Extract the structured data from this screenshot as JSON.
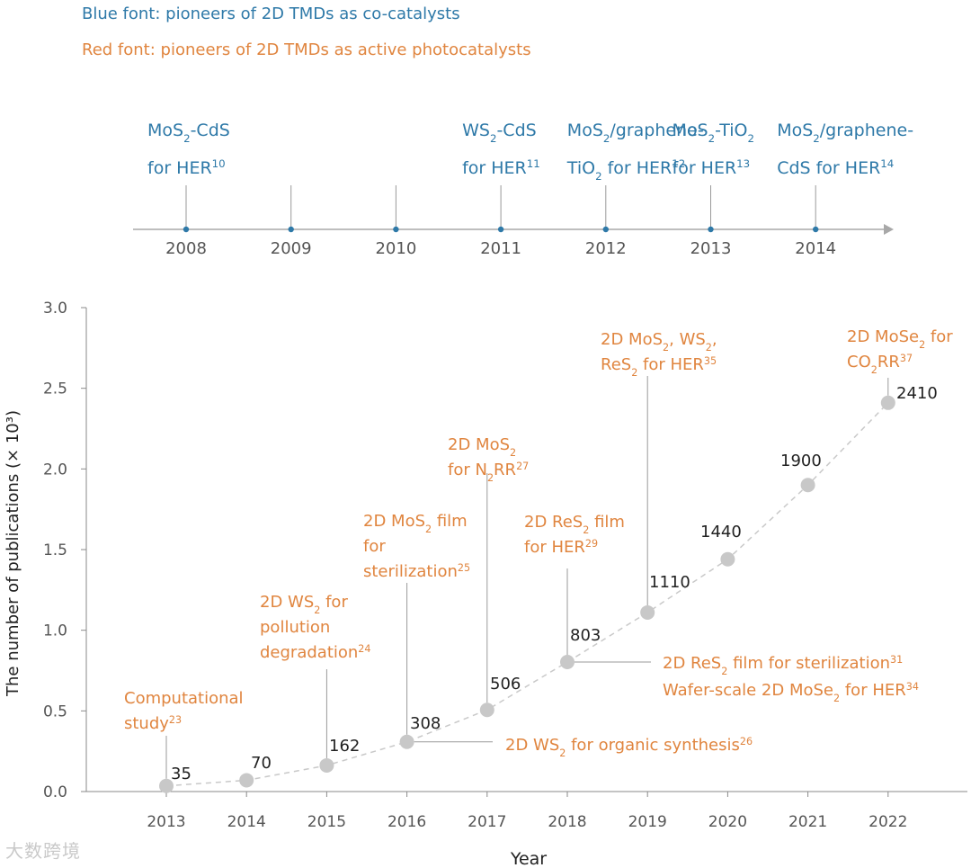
{
  "legend": {
    "blue_note": "Blue font: pioneers of 2D TMDs as co-catalysts",
    "red_note": "Red font: pioneers of 2D TMDs as active photocatalysts"
  },
  "colors": {
    "blue": "#2e79a8",
    "orange": "#e0853f",
    "marker": "#c8c8c8",
    "axis": "#8a8a8a"
  },
  "timeline": {
    "years": [
      "2008",
      "2009",
      "2010",
      "2011",
      "2012",
      "2013",
      "2014"
    ],
    "events": [
      {
        "year": "2008",
        "lines": [
          [
            {
              "t": "MoS"
            },
            {
              "t": "2",
              "s": "sub"
            },
            {
              "t": "-CdS"
            }
          ],
          [
            {
              "t": "for HER"
            },
            {
              "t": "10",
              "s": "sup"
            }
          ]
        ]
      },
      {
        "year": "2011",
        "lines": [
          [
            {
              "t": "WS"
            },
            {
              "t": "2",
              "s": "sub"
            },
            {
              "t": "-CdS"
            }
          ],
          [
            {
              "t": "for HER"
            },
            {
              "t": "11",
              "s": "sup"
            }
          ]
        ]
      },
      {
        "year": "2012",
        "lines": [
          [
            {
              "t": "MoS"
            },
            {
              "t": "2",
              "s": "sub"
            },
            {
              "t": "/graphene-"
            }
          ],
          [
            {
              "t": "TiO"
            },
            {
              "t": "2",
              "s": "sub"
            },
            {
              "t": " for HER"
            },
            {
              "t": "12",
              "s": "sup"
            }
          ]
        ]
      },
      {
        "year": "2013",
        "lines": [
          [
            {
              "t": "MoS"
            },
            {
              "t": "2",
              "s": "sub"
            },
            {
              "t": "-TiO"
            },
            {
              "t": "2",
              "s": "sub"
            }
          ],
          [
            {
              "t": "for HER"
            },
            {
              "t": "13",
              "s": "sup"
            }
          ]
        ]
      },
      {
        "year": "2014",
        "lines": [
          [
            {
              "t": "MoS"
            },
            {
              "t": "2",
              "s": "sub"
            },
            {
              "t": "/graphene-"
            }
          ],
          [
            {
              "t": "CdS for HER"
            },
            {
              "t": "14",
              "s": "sup"
            }
          ]
        ]
      }
    ]
  },
  "chart_data": {
    "type": "scatter",
    "title": "",
    "xlabel": "Year",
    "ylabel": "The number of publications (× 10³)",
    "x": [
      2013,
      2014,
      2015,
      2016,
      2017,
      2018,
      2019,
      2020,
      2021,
      2022
    ],
    "values": [
      35,
      70,
      162,
      308,
      506,
      803,
      1110,
      1440,
      1900,
      2410
    ],
    "y_scaled": [
      0.035,
      0.07,
      0.162,
      0.308,
      0.506,
      0.803,
      1.11,
      1.44,
      1.9,
      2.41
    ],
    "value_labels": [
      "35",
      "70",
      "162",
      "308",
      "506",
      "803",
      "1110",
      "1440",
      "1900",
      "2410"
    ],
    "x_tick_labels": [
      "2013",
      "2014",
      "2015",
      "2016",
      "2017",
      "2018",
      "2019",
      "2020",
      "2021",
      "2022"
    ],
    "y_tick_labels": [
      "0.0",
      "0.5",
      "1.0",
      "1.5",
      "2.0",
      "2.5",
      "3.0"
    ],
    "ylim": [
      0,
      3.0
    ],
    "xlim": [
      2012,
      2023
    ],
    "trend_line": "dashed",
    "grid": false,
    "annotations": [
      {
        "year": 2013,
        "lines": [
          [
            {
              "t": "Computational"
            }
          ],
          [
            {
              "t": "study"
            },
            {
              "t": "23",
              "s": "sup"
            }
          ]
        ]
      },
      {
        "year": 2015,
        "lines": [
          [
            {
              "t": "2D WS"
            },
            {
              "t": "2",
              "s": "sub"
            },
            {
              "t": " for"
            }
          ],
          [
            {
              "t": "pollution"
            }
          ],
          [
            {
              "t": "degradation"
            },
            {
              "t": "24",
              "s": "sup"
            }
          ]
        ]
      },
      {
        "year": 2016,
        "lines": [
          [
            {
              "t": "2D MoS"
            },
            {
              "t": "2",
              "s": "sub"
            },
            {
              "t": " film"
            }
          ],
          [
            {
              "t": "for"
            }
          ],
          [
            {
              "t": "sterilization"
            },
            {
              "t": "25",
              "s": "sup"
            }
          ]
        ]
      },
      {
        "year": 2016,
        "lines": [
          [
            {
              "t": "2D WS"
            },
            {
              "t": "2",
              "s": "sub"
            },
            {
              "t": " for organic synthesis"
            },
            {
              "t": "26",
              "s": "sup"
            }
          ]
        ]
      },
      {
        "year": 2017,
        "lines": [
          [
            {
              "t": "2D MoS"
            },
            {
              "t": "2",
              "s": "sub"
            }
          ],
          [
            {
              "t": "for N"
            },
            {
              "t": "2",
              "s": "sub"
            },
            {
              "t": "RR"
            },
            {
              "t": "27",
              "s": "sup"
            }
          ]
        ]
      },
      {
        "year": 2018,
        "lines": [
          [
            {
              "t": "2D ReS"
            },
            {
              "t": "2",
              "s": "sub"
            },
            {
              "t": " film"
            }
          ],
          [
            {
              "t": "for HER"
            },
            {
              "t": "29",
              "s": "sup"
            }
          ]
        ]
      },
      {
        "year": 2018,
        "lines": [
          [
            {
              "t": "2D ReS"
            },
            {
              "t": "2",
              "s": "sub"
            },
            {
              "t": " film for sterilization"
            },
            {
              "t": "31",
              "s": "sup"
            }
          ],
          [
            {
              "t": "Wafer-scale 2D MoSe"
            },
            {
              "t": "2",
              "s": "sub"
            },
            {
              "t": " for HER"
            },
            {
              "t": "34",
              "s": "sup"
            }
          ]
        ]
      },
      {
        "year": 2019,
        "lines": [
          [
            {
              "t": "2D MoS"
            },
            {
              "t": "2",
              "s": "sub"
            },
            {
              "t": ", WS"
            },
            {
              "t": "2",
              "s": "sub"
            },
            {
              "t": ","
            }
          ],
          [
            {
              "t": "ReS"
            },
            {
              "t": "2",
              "s": "sub"
            },
            {
              "t": " for HER"
            },
            {
              "t": "35",
              "s": "sup"
            }
          ]
        ]
      },
      {
        "year": 2022,
        "lines": [
          [
            {
              "t": "2D MoSe"
            },
            {
              "t": "2",
              "s": "sub"
            },
            {
              "t": " for"
            }
          ],
          [
            {
              "t": "CO"
            },
            {
              "t": "2",
              "s": "sub"
            },
            {
              "t": "RR"
            },
            {
              "t": "37",
              "s": "sup"
            }
          ]
        ]
      }
    ]
  },
  "watermark": "大数跨境"
}
